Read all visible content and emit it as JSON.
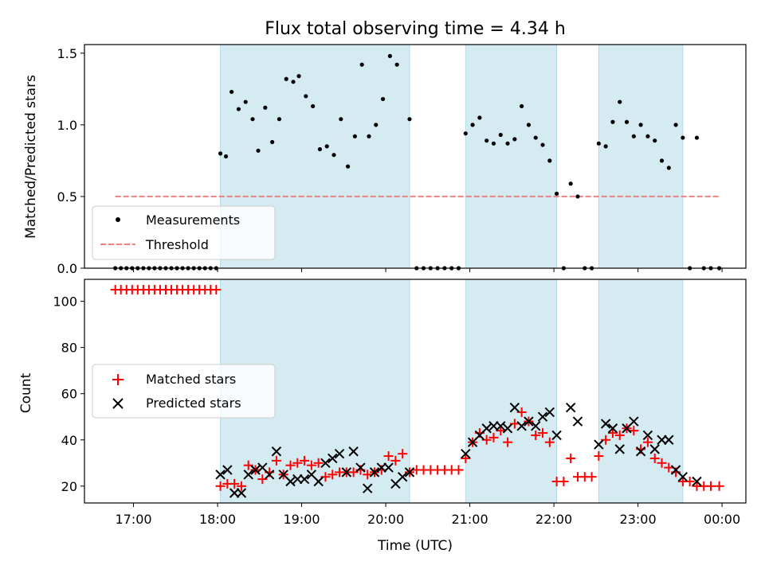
{
  "chart_data": [
    {
      "type": "scatter",
      "title": "Flux total observing time = 4.34 h",
      "xlabel": "",
      "ylabel": "Matched/Predicted stars",
      "ylim": [
        0,
        1.56
      ],
      "yticks": [
        "0.0",
        "0.5",
        "1.0",
        "1.5"
      ],
      "xlim": [
        "16:25",
        "00:17"
      ],
      "x_ticks": [
        "17:00",
        "18:00",
        "19:00",
        "20:00",
        "21:00",
        "22:00",
        "23:00",
        "00:00"
      ],
      "shaded_intervals": [
        [
          "18:02",
          "20:17"
        ],
        [
          "20:57",
          "22:02"
        ],
        [
          "22:32",
          "23:32"
        ]
      ],
      "shade_color": "#add8e6",
      "threshold": {
        "name": "Threshold",
        "value": 0.5,
        "x_start": "16:47",
        "x_end": "23:58",
        "color": "#f08080"
      },
      "series": [
        {
          "name": "Measurements",
          "color": "#000000",
          "points": [
            [
              "16:47",
              0
            ],
            [
              "16:51",
              0
            ],
            [
              "16:55",
              0
            ],
            [
              "16:59",
              0
            ],
            [
              "17:03",
              0
            ],
            [
              "17:07",
              0
            ],
            [
              "17:11",
              0
            ],
            [
              "17:15",
              0
            ],
            [
              "17:19",
              0
            ],
            [
              "17:23",
              0
            ],
            [
              "17:27",
              0
            ],
            [
              "17:31",
              0
            ],
            [
              "17:35",
              0
            ],
            [
              "17:39",
              0
            ],
            [
              "17:43",
              0
            ],
            [
              "17:47",
              0
            ],
            [
              "17:51",
              0
            ],
            [
              "17:55",
              0
            ],
            [
              "17:59",
              0
            ],
            [
              "18:02",
              0.8
            ],
            [
              "18:06",
              0.78
            ],
            [
              "18:10",
              1.23
            ],
            [
              "18:15",
              1.11
            ],
            [
              "18:20",
              1.16
            ],
            [
              "18:25",
              1.04
            ],
            [
              "18:29",
              0.82
            ],
            [
              "18:34",
              1.12
            ],
            [
              "18:39",
              0.88
            ],
            [
              "18:44",
              1.04
            ],
            [
              "18:49",
              1.32
            ],
            [
              "18:54",
              1.3
            ],
            [
              "18:58",
              1.34
            ],
            [
              "19:03",
              1.2
            ],
            [
              "19:08",
              1.13
            ],
            [
              "19:13",
              0.83
            ],
            [
              "19:18",
              0.85
            ],
            [
              "19:23",
              0.79
            ],
            [
              "19:28",
              1.04
            ],
            [
              "19:33",
              0.71
            ],
            [
              "19:38",
              0.92
            ],
            [
              "19:43",
              1.42
            ],
            [
              "19:48",
              0.92
            ],
            [
              "19:53",
              1.0
            ],
            [
              "19:58",
              1.18
            ],
            [
              "20:03",
              1.48
            ],
            [
              "20:08",
              1.42
            ],
            [
              "20:17",
              1.04
            ],
            [
              "20:22",
              0
            ],
            [
              "20:27",
              0
            ],
            [
              "20:32",
              0
            ],
            [
              "20:37",
              0
            ],
            [
              "20:42",
              0
            ],
            [
              "20:47",
              0
            ],
            [
              "20:52",
              0
            ],
            [
              "20:57",
              0.94
            ],
            [
              "21:02",
              1.0
            ],
            [
              "21:07",
              1.05
            ],
            [
              "21:12",
              0.89
            ],
            [
              "21:17",
              0.87
            ],
            [
              "21:22",
              0.93
            ],
            [
              "21:27",
              0.87
            ],
            [
              "21:32",
              0.9
            ],
            [
              "21:37",
              1.13
            ],
            [
              "21:42",
              1.0
            ],
            [
              "21:47",
              0.91
            ],
            [
              "21:52",
              0.86
            ],
            [
              "21:57",
              0.75
            ],
            [
              "22:02",
              0.52
            ],
            [
              "22:07",
              0
            ],
            [
              "22:12",
              0.59
            ],
            [
              "22:17",
              0.5
            ],
            [
              "22:22",
              0
            ],
            [
              "22:27",
              0
            ],
            [
              "22:32",
              0.87
            ],
            [
              "22:37",
              0.85
            ],
            [
              "22:42",
              1.02
            ],
            [
              "22:47",
              1.16
            ],
            [
              "22:52",
              1.02
            ],
            [
              "22:57",
              0.92
            ],
            [
              "23:02",
              1.0
            ],
            [
              "23:07",
              0.92
            ],
            [
              "23:12",
              0.89
            ],
            [
              "23:17",
              0.75
            ],
            [
              "23:22",
              0.7
            ],
            [
              "23:27",
              1.0
            ],
            [
              "23:32",
              0.91
            ],
            [
              "23:37",
              0
            ],
            [
              "23:42",
              0.91
            ],
            [
              "23:47",
              0
            ],
            [
              "23:52",
              0
            ],
            [
              "23:58",
              0
            ]
          ]
        }
      ],
      "legend": {
        "location": "lower-left",
        "entries": [
          "Measurements",
          "Threshold"
        ]
      }
    },
    {
      "type": "scatter",
      "title": "",
      "xlabel": "Time (UTC)",
      "ylabel": "Count",
      "ylim": [
        12.7,
        109.5
      ],
      "yticks": [
        "20",
        "40",
        "60",
        "80",
        "100"
      ],
      "xlim": [
        "16:25",
        "00:17"
      ],
      "x_ticks": [
        "17:00",
        "18:00",
        "19:00",
        "20:00",
        "21:00",
        "22:00",
        "23:00",
        "00:00"
      ],
      "shaded_intervals": [
        [
          "18:02",
          "20:17"
        ],
        [
          "20:57",
          "22:02"
        ],
        [
          "22:32",
          "23:32"
        ]
      ],
      "shade_color": "#add8e6",
      "series": [
        {
          "name": "Matched stars",
          "marker": "+",
          "color": "#ff0000",
          "points": [
            [
              "16:47",
              105
            ],
            [
              "16:51",
              105
            ],
            [
              "16:55",
              105
            ],
            [
              "16:59",
              105
            ],
            [
              "17:03",
              105
            ],
            [
              "17:07",
              105
            ],
            [
              "17:11",
              105
            ],
            [
              "17:15",
              105
            ],
            [
              "17:19",
              105
            ],
            [
              "17:23",
              105
            ],
            [
              "17:27",
              105
            ],
            [
              "17:31",
              105
            ],
            [
              "17:35",
              105
            ],
            [
              "17:39",
              105
            ],
            [
              "17:43",
              105
            ],
            [
              "17:47",
              105
            ],
            [
              "17:51",
              105
            ],
            [
              "17:55",
              105
            ],
            [
              "17:59",
              105
            ],
            [
              "18:02",
              20
            ],
            [
              "18:07",
              21
            ],
            [
              "18:12",
              21
            ],
            [
              "18:17",
              20
            ],
            [
              "18:22",
              29
            ],
            [
              "18:27",
              27
            ],
            [
              "18:32",
              23
            ],
            [
              "18:37",
              26
            ],
            [
              "18:42",
              31
            ],
            [
              "18:47",
              25
            ],
            [
              "18:52",
              29
            ],
            [
              "18:57",
              30
            ],
            [
              "19:02",
              31
            ],
            [
              "19:07",
              29
            ],
            [
              "19:12",
              30
            ],
            [
              "19:17",
              24
            ],
            [
              "19:22",
              25
            ],
            [
              "19:27",
              26
            ],
            [
              "19:32",
              26
            ],
            [
              "19:37",
              26
            ],
            [
              "19:42",
              27
            ],
            [
              "19:47",
              25
            ],
            [
              "19:52",
              26
            ],
            [
              "19:57",
              27
            ],
            [
              "20:02",
              33
            ],
            [
              "20:07",
              31
            ],
            [
              "20:12",
              34
            ],
            [
              "20:17",
              26
            ],
            [
              "20:22",
              27
            ],
            [
              "20:27",
              27
            ],
            [
              "20:32",
              27
            ],
            [
              "20:37",
              27
            ],
            [
              "20:42",
              27
            ],
            [
              "20:47",
              27
            ],
            [
              "20:52",
              27
            ],
            [
              "20:57",
              32
            ],
            [
              "21:02",
              39
            ],
            [
              "21:07",
              43
            ],
            [
              "21:12",
              40
            ],
            [
              "21:17",
              41
            ],
            [
              "21:22",
              44
            ],
            [
              "21:27",
              39
            ],
            [
              "21:32",
              47
            ],
            [
              "21:37",
              52
            ],
            [
              "21:42",
              48
            ],
            [
              "21:47",
              42
            ],
            [
              "21:52",
              43
            ],
            [
              "21:57",
              39
            ],
            [
              "22:02",
              22
            ],
            [
              "22:07",
              22
            ],
            [
              "22:12",
              32
            ],
            [
              "22:17",
              24
            ],
            [
              "22:22",
              24
            ],
            [
              "22:27",
              24
            ],
            [
              "22:32",
              33
            ],
            [
              "22:37",
              40
            ],
            [
              "22:42",
              43
            ],
            [
              "22:47",
              42
            ],
            [
              "22:52",
              45
            ],
            [
              "22:57",
              44
            ],
            [
              "23:02",
              36
            ],
            [
              "23:07",
              39
            ],
            [
              "23:12",
              32
            ],
            [
              "23:17",
              30
            ],
            [
              "23:22",
              28
            ],
            [
              "23:27",
              26
            ],
            [
              "23:32",
              22
            ],
            [
              "23:37",
              22
            ],
            [
              "23:42",
              20
            ],
            [
              "23:47",
              20
            ],
            [
              "23:52",
              20
            ],
            [
              "23:58",
              20
            ]
          ]
        },
        {
          "name": "Predicted stars",
          "marker": "x",
          "color": "#000000",
          "points": [
            [
              "18:02",
              25
            ],
            [
              "18:07",
              27
            ],
            [
              "18:12",
              17
            ],
            [
              "18:17",
              17
            ],
            [
              "18:22",
              25
            ],
            [
              "18:27",
              27
            ],
            [
              "18:32",
              28
            ],
            [
              "18:37",
              25
            ],
            [
              "18:42",
              35
            ],
            [
              "18:47",
              25
            ],
            [
              "18:52",
              22
            ],
            [
              "18:57",
              23
            ],
            [
              "19:02",
              23
            ],
            [
              "19:07",
              25
            ],
            [
              "19:12",
              22
            ],
            [
              "19:17",
              30
            ],
            [
              "19:22",
              32
            ],
            [
              "19:27",
              34
            ],
            [
              "19:32",
              26
            ],
            [
              "19:37",
              35
            ],
            [
              "19:42",
              28
            ],
            [
              "19:47",
              19
            ],
            [
              "19:52",
              26
            ],
            [
              "19:57",
              28
            ],
            [
              "20:02",
              28
            ],
            [
              "20:07",
              21
            ],
            [
              "20:12",
              24
            ],
            [
              "20:17",
              26
            ],
            [
              "20:57",
              34
            ],
            [
              "21:02",
              39
            ],
            [
              "21:07",
              42
            ],
            [
              "21:12",
              45
            ],
            [
              "21:17",
              46
            ],
            [
              "21:22",
              46
            ],
            [
              "21:27",
              45
            ],
            [
              "21:32",
              54
            ],
            [
              "21:37",
              46
            ],
            [
              "21:42",
              48
            ],
            [
              "21:47",
              46
            ],
            [
              "21:52",
              50
            ],
            [
              "21:57",
              52
            ],
            [
              "22:02",
              42
            ],
            [
              "22:12",
              54
            ],
            [
              "22:17",
              48
            ],
            [
              "22:32",
              38
            ],
            [
              "22:37",
              47
            ],
            [
              "22:42",
              45
            ],
            [
              "22:47",
              36
            ],
            [
              "22:52",
              45
            ],
            [
              "22:57",
              48
            ],
            [
              "23:02",
              35
            ],
            [
              "23:07",
              42
            ],
            [
              "23:12",
              36
            ],
            [
              "23:17",
              40
            ],
            [
              "23:22",
              40
            ],
            [
              "23:27",
              27
            ],
            [
              "23:32",
              24
            ],
            [
              "23:42",
              22
            ]
          ]
        }
      ],
      "legend": {
        "location": "center-left",
        "entries": [
          "Matched stars",
          "Predicted stars"
        ]
      }
    }
  ]
}
